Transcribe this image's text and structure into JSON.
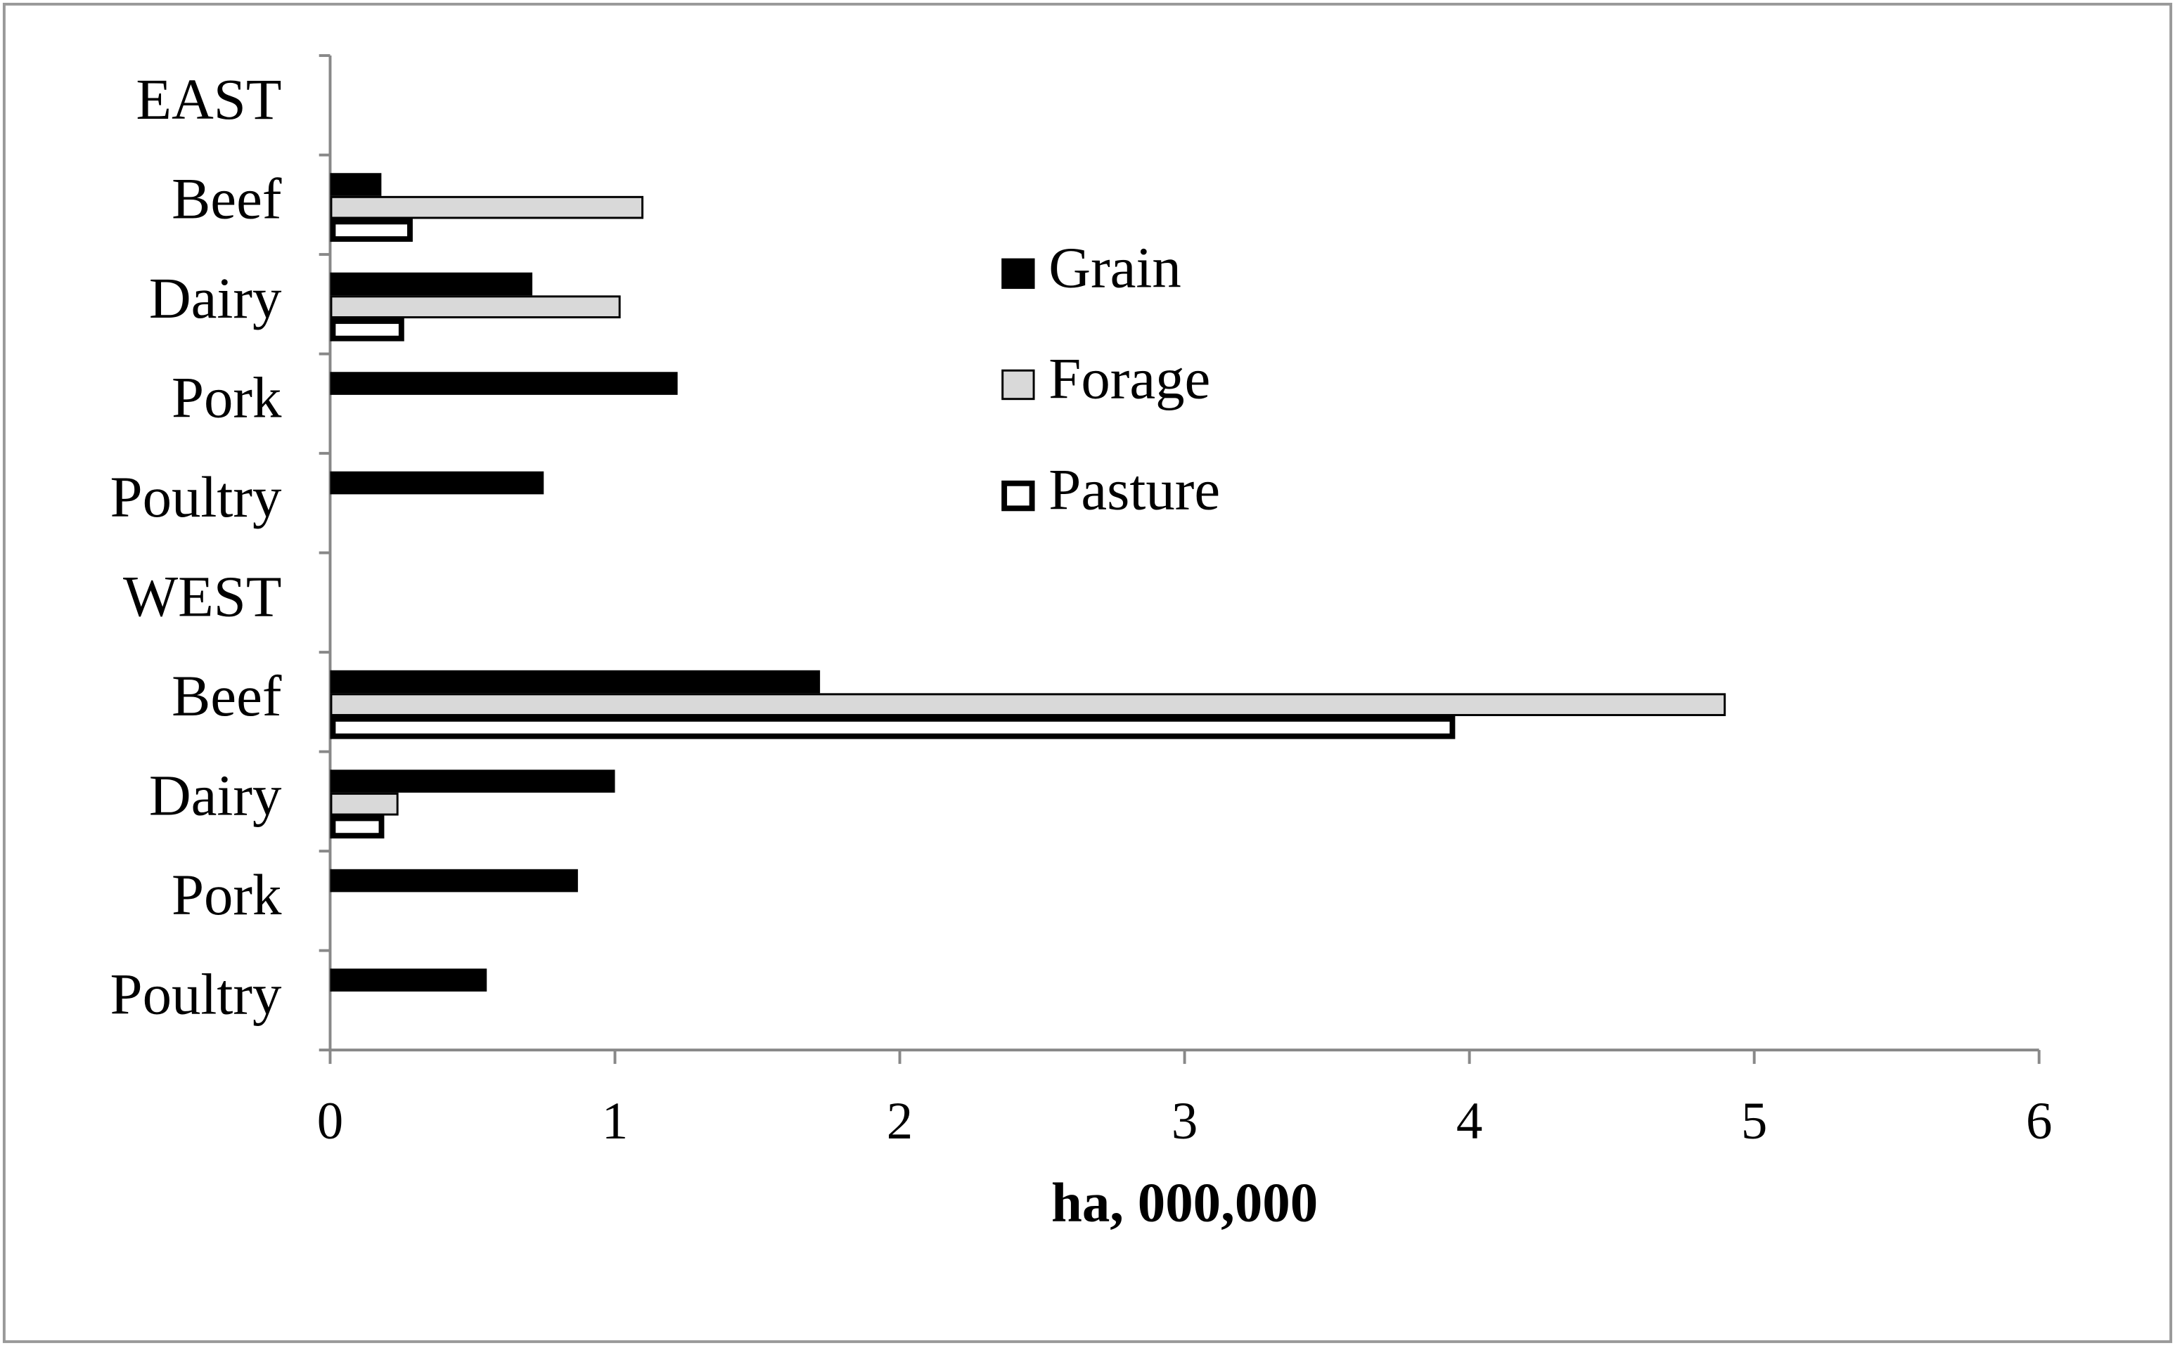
{
  "chart_data": {
    "type": "bar",
    "orientation": "horizontal",
    "x_label": "ha, 000,000",
    "categories": [
      "EAST",
      "Beef",
      "Dairy",
      "Pork",
      "Poultry",
      "WEST",
      "Beef",
      "Dairy",
      "Pork",
      "Poultry"
    ],
    "series": [
      {
        "name": "Grain",
        "color": "#000000",
        "values": [
          null,
          0.18,
          0.71,
          1.22,
          0.75,
          null,
          1.72,
          1.0,
          0.87,
          0.55
        ]
      },
      {
        "name": "Forage",
        "color": "#d9d9d9",
        "values": [
          null,
          1.1,
          1.02,
          null,
          null,
          null,
          4.9,
          0.24,
          null,
          null
        ]
      },
      {
        "name": "Pasture",
        "color": "#ffffff",
        "values": [
          null,
          0.29,
          0.26,
          null,
          null,
          null,
          3.95,
          0.19,
          null,
          null
        ]
      }
    ],
    "xlim": [
      0,
      6
    ],
    "xticks": [
      0,
      1,
      2,
      3,
      4,
      5,
      6
    ],
    "legend": "center"
  }
}
